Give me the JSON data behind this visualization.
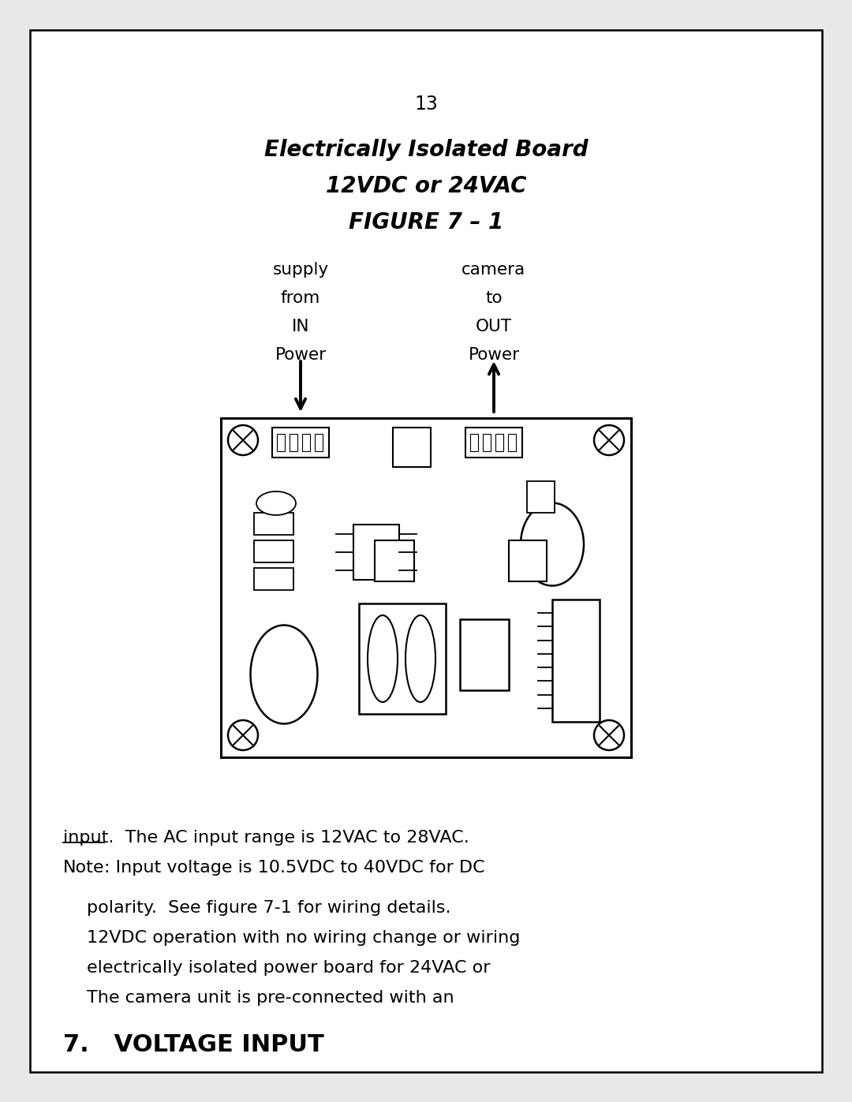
{
  "bg_color": "#ffffff",
  "page_bg": "#e8e8e8",
  "border_color": "#000000",
  "title": "7.   VOLTAGE INPUT",
  "body_line1": "The camera unit is pre-connected with an",
  "body_line2": "electrically isolated power board for 24VAC or",
  "body_line3": "12VDC operation with no wiring change or wiring",
  "body_line4": "polarity.  See figure 7-1 for wiring details.",
  "note_label": "Note",
  "note_rest": ": Input voltage is 10.5VDC to 40VDC for DC",
  "note_line2": "input.  The AC input range is 12VAC to 28VAC.",
  "fig_caption_1": "FIGURE 7 – 1",
  "fig_caption_2": "12VDC or 24VAC",
  "fig_caption_3": "Electrically Isolated Board",
  "page_number": "13",
  "label_left": "Power\nIN\nfrom\nsupply",
  "label_right": "Power\nOUT\nto\ncamera"
}
